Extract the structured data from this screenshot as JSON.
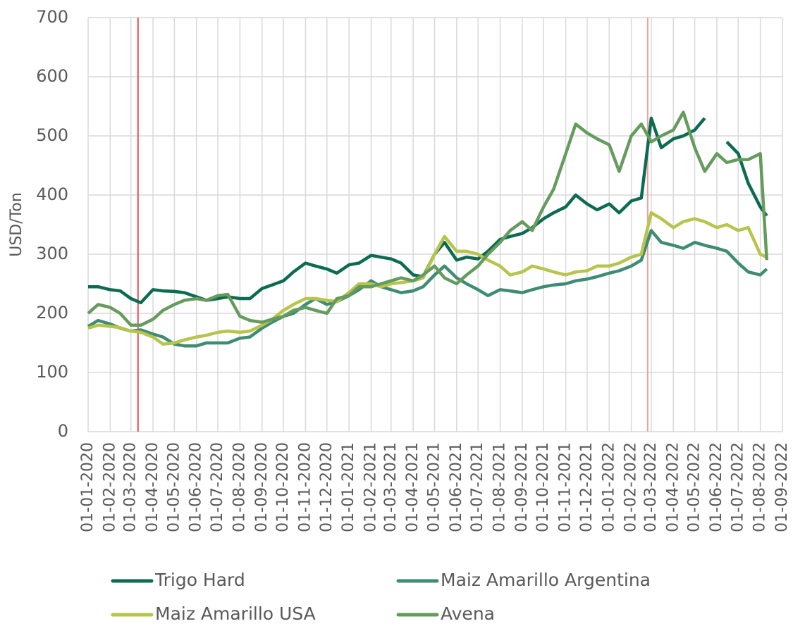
{
  "chart_data": {
    "type": "line",
    "y_label": "USD/Ton",
    "x": [
      "01-01-2020",
      "15-01-2020",
      "01-02-2020",
      "15-02-2020",
      "01-03-2020",
      "15-03-2020",
      "01-04-2020",
      "15-04-2020",
      "01-05-2020",
      "15-05-2020",
      "01-06-2020",
      "15-06-2020",
      "01-07-2020",
      "15-07-2020",
      "01-08-2020",
      "15-08-2020",
      "01-09-2020",
      "15-09-2020",
      "01-10-2020",
      "15-10-2020",
      "01-11-2020",
      "15-11-2020",
      "01-12-2020",
      "15-12-2020",
      "01-01-2021",
      "15-01-2021",
      "01-02-2021",
      "15-02-2021",
      "01-03-2021",
      "15-03-2021",
      "01-04-2021",
      "15-04-2021",
      "01-05-2021",
      "15-05-2021",
      "01-06-2021",
      "15-06-2021",
      "01-07-2021",
      "15-07-2021",
      "01-08-2021",
      "15-08-2021",
      "01-09-2021",
      "15-09-2021",
      "01-10-2021",
      "15-10-2021",
      "01-11-2021",
      "15-11-2021",
      "01-12-2021",
      "15-12-2021",
      "01-01-2022",
      "15-01-2022",
      "01-02-2022",
      "15-02-2022",
      "01-03-2022",
      "15-03-2022",
      "01-04-2022",
      "15-04-2022",
      "01-05-2022",
      "15-05-2022",
      "01-06-2022",
      "15-06-2022",
      "01-07-2022",
      "15-07-2022",
      "01-08-2022",
      "10-08-2022"
    ],
    "series": [
      {
        "name": "Trigo Hard",
        "color": "#0d6b52",
        "values": [
          245,
          245,
          240,
          238,
          225,
          218,
          240,
          238,
          237,
          235,
          228,
          222,
          225,
          228,
          225,
          225,
          242,
          248,
          255,
          270,
          285,
          280,
          275,
          268,
          282,
          285,
          298,
          295,
          292,
          285,
          265,
          262,
          300,
          320,
          290,
          295,
          292,
          305,
          325,
          330,
          335,
          345,
          360,
          370,
          380,
          400,
          385,
          375,
          385,
          370,
          390,
          395,
          530,
          480,
          495,
          500,
          510,
          530,
          null,
          490,
          470,
          420,
          380,
          365
        ]
      },
      {
        "name": "Maiz Amarillo Argentina",
        "color": "#3f8c74",
        "values": [
          178,
          188,
          182,
          175,
          170,
          172,
          165,
          160,
          148,
          145,
          145,
          150,
          150,
          150,
          158,
          160,
          175,
          185,
          195,
          200,
          215,
          225,
          215,
          220,
          230,
          240,
          255,
          245,
          240,
          235,
          238,
          245,
          265,
          280,
          260,
          250,
          240,
          230,
          240,
          238,
          235,
          240,
          245,
          248,
          250,
          255,
          258,
          262,
          268,
          272,
          280,
          290,
          340,
          320,
          315,
          310,
          320,
          315,
          310,
          305,
          285,
          270,
          265,
          275
        ]
      },
      {
        "name": "Maiz Amarillo USA",
        "color": "#b8c44c",
        "values": [
          175,
          180,
          178,
          176,
          170,
          168,
          160,
          148,
          150,
          155,
          160,
          163,
          168,
          170,
          168,
          170,
          180,
          190,
          205,
          215,
          225,
          225,
          222,
          220,
          235,
          250,
          250,
          245,
          250,
          252,
          255,
          260,
          300,
          330,
          305,
          305,
          300,
          290,
          280,
          265,
          270,
          280,
          275,
          270,
          265,
          270,
          272,
          280,
          280,
          285,
          295,
          300,
          370,
          360,
          345,
          355,
          360,
          355,
          345,
          350,
          340,
          345,
          300,
          295
        ]
      },
      {
        "name": "Avena",
        "color": "#659b5d",
        "values": [
          200,
          215,
          210,
          200,
          180,
          180,
          190,
          205,
          215,
          222,
          225,
          222,
          230,
          232,
          195,
          188,
          185,
          190,
          195,
          205,
          210,
          205,
          200,
          225,
          230,
          245,
          245,
          250,
          255,
          260,
          255,
          265,
          280,
          260,
          250,
          265,
          280,
          300,
          320,
          340,
          355,
          340,
          380,
          410,
          470,
          520,
          505,
          495,
          485,
          440,
          500,
          520,
          490,
          500,
          510,
          540,
          480,
          440,
          470,
          455,
          460,
          460,
          470,
          290
        ]
      }
    ],
    "xlim": [
      "01-01-2020",
      "01-09-2022"
    ],
    "xticks": [
      "01-01-2020",
      "01-02-2020",
      "01-03-2020",
      "01-04-2020",
      "01-05-2020",
      "01-06-2020",
      "01-07-2020",
      "01-08-2020",
      "01-09-2020",
      "01-10-2020",
      "01-11-2020",
      "01-12-2020",
      "01-01-2021",
      "01-02-2021",
      "01-03-2021",
      "01-04-2021",
      "01-05-2021",
      "01-06-2021",
      "01-07-2021",
      "01-08-2021",
      "01-09-2021",
      "01-10-2021",
      "01-11-2021",
      "01-12-2021",
      "01-01-2022",
      "01-02-2022",
      "01-03-2022",
      "01-04-2022",
      "01-05-2022",
      "01-06-2022",
      "01-07-2022",
      "01-08-2022",
      "01-09-2022"
    ],
    "ylim": [
      0,
      700
    ],
    "yticks": [
      0,
      100,
      200,
      300,
      400,
      500,
      600,
      700
    ],
    "grid": true,
    "legend": "bottom",
    "reference_lines": [
      {
        "x": "11-03-2020",
        "color": "#e8524f"
      },
      {
        "x": "24-02-2022",
        "color": "#f2a0a0"
      }
    ]
  }
}
